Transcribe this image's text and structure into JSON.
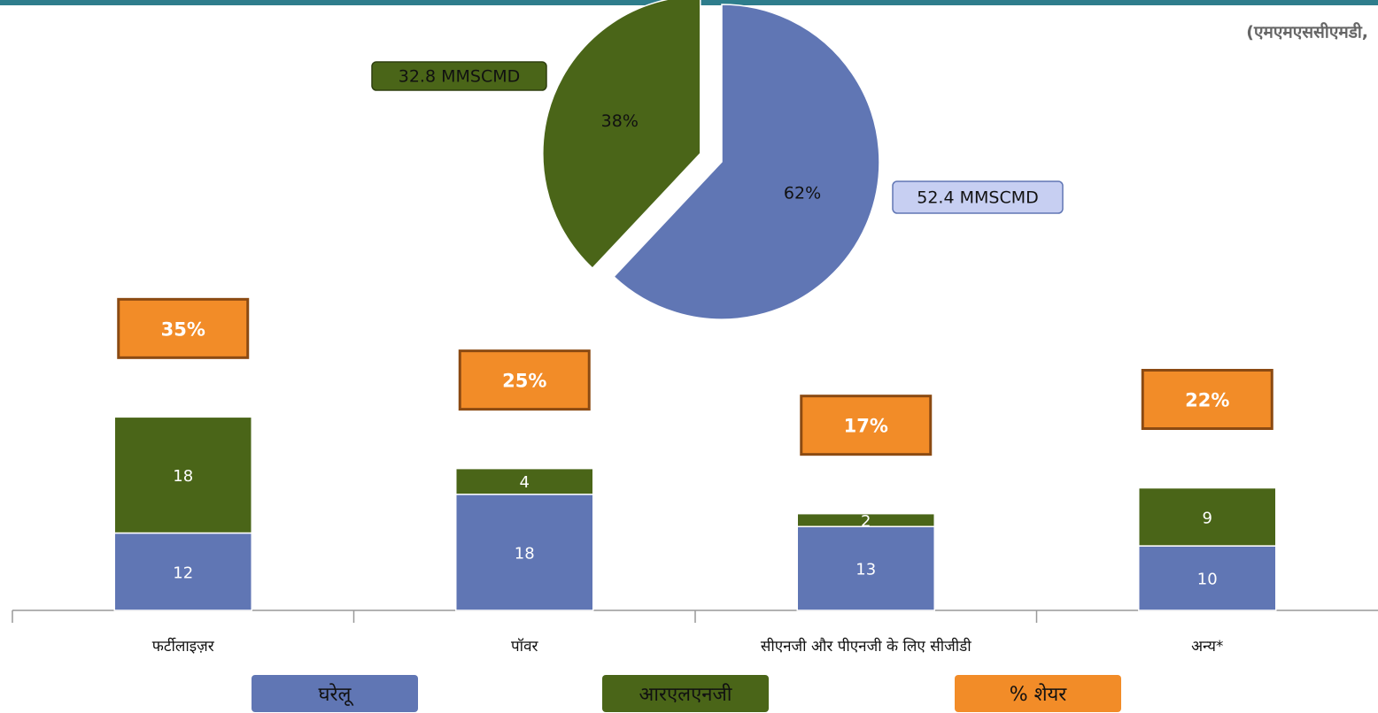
{
  "chart_data": [
    {
      "type": "bar",
      "subtitle": "(एमएमएससीएमडी,",
      "categories": [
        "फर्टीलाइज़र",
        "पॉवर",
        "सीएनजी और पीएनजी के लिए सीजीडी",
        "अन्य*"
      ],
      "series": [
        {
          "name": "घरेलू",
          "color": "#6076b4",
          "values": [
            12,
            18,
            13,
            10
          ]
        },
        {
          "name": "आरएलएनजी",
          "color": "#4a6518",
          "values": [
            18,
            4,
            2,
            9
          ]
        }
      ],
      "share": {
        "name": "% शेयर",
        "color": "#f28c28",
        "values": [
          35,
          25,
          17,
          22
        ],
        "value_labels": [
          "35%",
          "25%",
          "17%",
          "22%"
        ]
      },
      "ylim": [
        0,
        45
      ],
      "stacked": true
    },
    {
      "type": "pie",
      "values": [
        62,
        38
      ],
      "value_labels": [
        "62%",
        "38%"
      ],
      "colors": [
        "#6076b4",
        "#4a6518"
      ],
      "amounts": [
        52.4,
        32.8
      ],
      "amount_labels": [
        "52.4 MMSCMD",
        "32.8 MMSCMD"
      ]
    }
  ]
}
